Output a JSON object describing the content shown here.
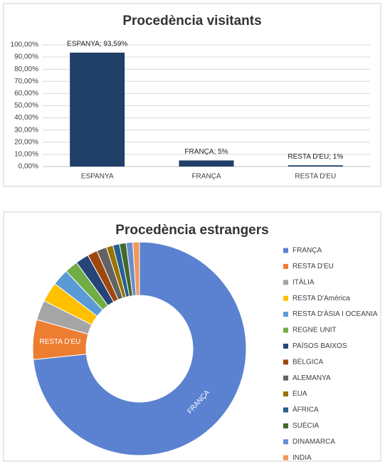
{
  "chart_data": [
    {
      "type": "bar",
      "title": "Procedència visitants",
      "categories": [
        "ESPANYA",
        "FRANÇA",
        "RESTA D'EU"
      ],
      "values": [
        93.59,
        5,
        1
      ],
      "value_labels": [
        "ESPANYA;  93,59%",
        "FRANÇA; 5%",
        "RESTA D'EU; 1%"
      ],
      "color": "#1f3f68",
      "ylim": [
        0,
        100
      ],
      "yticks": [
        {
          "value": 0,
          "label": "0,00%"
        },
        {
          "value": 10,
          "label": "10,00%"
        },
        {
          "value": 20,
          "label": "20,00%"
        },
        {
          "value": 30,
          "label": "30,00%"
        },
        {
          "value": 40,
          "label": "40,00%"
        },
        {
          "value": 50,
          "label": "50,00%"
        },
        {
          "value": 60,
          "label": "60,00%"
        },
        {
          "value": 70,
          "label": "70,00%"
        },
        {
          "value": 80,
          "label": "80,00%"
        },
        {
          "value": 90,
          "label": "90,00%"
        },
        {
          "value": 100,
          "label": "100,00%"
        }
      ],
      "grid": true
    },
    {
      "type": "donut",
      "title": "Procedència estrangers",
      "categories": [
        "FRANÇA",
        "RESTA D'EU",
        "ITÀLIA",
        "RESTA D'Amèrica",
        "RESTA D'ÀSIA I OCEANIA",
        "REGNE UNIT",
        "PAÏSOS BAIXOS",
        "BÈLGICA",
        "ALEMANYA",
        "EUA",
        "ÀFRICA",
        "SUÈCIA",
        "DINAMARCA",
        "INDIA"
      ],
      "values": [
        73,
        6,
        3,
        3,
        2.5,
        2,
        2,
        1.5,
        1.5,
        1,
        1,
        1,
        1,
        1
      ],
      "colors": [
        "#5b82d0",
        "#ed7d31",
        "#a5a5a5",
        "#ffc000",
        "#5b9bd5",
        "#70ad47",
        "#264478",
        "#9e480e",
        "#636363",
        "#997300",
        "#255e91",
        "#43682b",
        "#698ed0",
        "#f1975a"
      ],
      "legend": "right"
    }
  ]
}
